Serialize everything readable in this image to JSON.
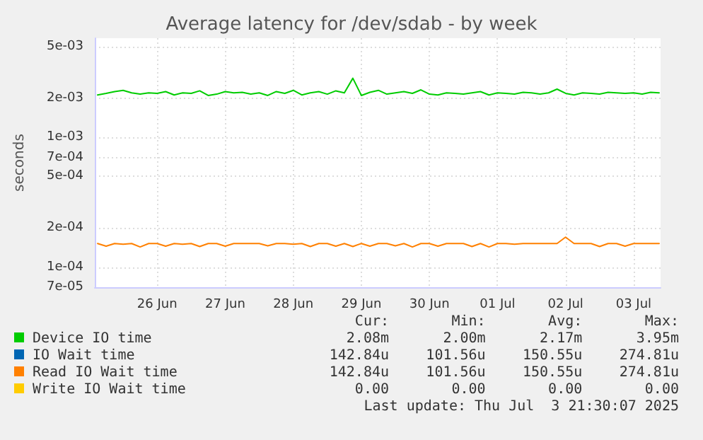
{
  "chart_data": {
    "type": "line",
    "title": "Average latency for /dev/sdab - by week",
    "ylabel": "seconds",
    "x": [
      "2025-06-25T15:00",
      "2025-06-25T18:00",
      "2025-06-25T21:00",
      "2025-06-26T00:00",
      "2025-06-26T03:00",
      "2025-06-26T06:00",
      "2025-06-26T09:00",
      "2025-06-26T12:00",
      "2025-06-26T15:00",
      "2025-06-26T18:00",
      "2025-06-26T21:00",
      "2025-06-27T00:00",
      "2025-06-27T03:00",
      "2025-06-27T06:00",
      "2025-06-27T09:00",
      "2025-06-27T12:00",
      "2025-06-27T15:00",
      "2025-06-27T18:00",
      "2025-06-27T21:00",
      "2025-06-28T00:00",
      "2025-06-28T03:00",
      "2025-06-28T06:00",
      "2025-06-28T09:00",
      "2025-06-28T12:00",
      "2025-06-28T15:00",
      "2025-06-28T18:00",
      "2025-06-28T21:00",
      "2025-06-29T00:00",
      "2025-06-29T03:00",
      "2025-06-29T06:00",
      "2025-06-29T09:00",
      "2025-06-29T12:00",
      "2025-06-29T15:00",
      "2025-06-29T18:00",
      "2025-06-29T21:00",
      "2025-06-30T00:00",
      "2025-06-30T03:00",
      "2025-06-30T06:00",
      "2025-06-30T09:00",
      "2025-06-30T12:00",
      "2025-06-30T15:00",
      "2025-06-30T18:00",
      "2025-06-30T21:00",
      "2025-07-01T00:00",
      "2025-07-01T03:00",
      "2025-07-01T06:00",
      "2025-07-01T09:00",
      "2025-07-01T12:00",
      "2025-07-01T15:00",
      "2025-07-01T18:00",
      "2025-07-01T21:00",
      "2025-07-02T00:00",
      "2025-07-02T03:00",
      "2025-07-02T06:00",
      "2025-07-02T09:00",
      "2025-07-02T12:00",
      "2025-07-02T15:00",
      "2025-07-02T18:00",
      "2025-07-02T21:00",
      "2025-07-03T00:00",
      "2025-07-03T03:00",
      "2025-07-03T06:00",
      "2025-07-03T09:00",
      "2025-07-03T12:00",
      "2025-07-03T15:00",
      "2025-07-03T18:00",
      "2025-07-03T21:00"
    ],
    "series": [
      {
        "name": "Device IO time",
        "color": "#00cc00",
        "values": [
          0.00212,
          0.00218,
          0.00225,
          0.0023,
          0.0022,
          0.00215,
          0.0022,
          0.00218,
          0.00225,
          0.00212,
          0.0022,
          0.00218,
          0.00228,
          0.0021,
          0.00215,
          0.00225,
          0.0022,
          0.00222,
          0.00215,
          0.0022,
          0.0021,
          0.00225,
          0.00218,
          0.0023,
          0.00212,
          0.0022,
          0.00225,
          0.00215,
          0.00228,
          0.0022,
          0.00285,
          0.0021,
          0.00222,
          0.0023,
          0.00215,
          0.0022,
          0.00225,
          0.00218,
          0.00232,
          0.00215,
          0.00212,
          0.0022,
          0.00218,
          0.00215,
          0.0022,
          0.00225,
          0.00212,
          0.0022,
          0.00218,
          0.00215,
          0.00222,
          0.0022,
          0.00215,
          0.0022,
          0.00235,
          0.00218,
          0.00212,
          0.0022,
          0.00218,
          0.00215,
          0.00222,
          0.0022,
          0.00218,
          0.0022,
          0.00215,
          0.00222,
          0.0022
        ]
      },
      {
        "name": "IO Wait time",
        "color": "#0066b3",
        "values": [
          null,
          null,
          null,
          null,
          null,
          null,
          null,
          null,
          null,
          null,
          null,
          null,
          null,
          null,
          null,
          null,
          null,
          null,
          null,
          null,
          null,
          null,
          null,
          null,
          null,
          null,
          null,
          null,
          null,
          null,
          null,
          null,
          null,
          null,
          null,
          null,
          null,
          null,
          null,
          null,
          null,
          null,
          null,
          null,
          null,
          null,
          null,
          null,
          null,
          null,
          null,
          null,
          null,
          null,
          null,
          null,
          null,
          null,
          null,
          null,
          null,
          null,
          null,
          null,
          null,
          null,
          null
        ]
      },
      {
        "name": "Read IO Wait time",
        "color": "#ff8000",
        "values": [
          0.000152,
          0.000145,
          0.000152,
          0.00015,
          0.000152,
          0.000143,
          0.000152,
          0.000152,
          0.000145,
          0.000152,
          0.00015,
          0.000152,
          0.000144,
          0.000152,
          0.000152,
          0.000145,
          0.000152,
          0.000152,
          0.000152,
          0.000152,
          0.000146,
          0.000152,
          0.000152,
          0.00015,
          0.000152,
          0.000144,
          0.000152,
          0.000152,
          0.000145,
          0.000152,
          0.000144,
          0.000152,
          0.000145,
          0.000152,
          0.000152,
          0.000146,
          0.000152,
          0.000143,
          0.000152,
          0.000152,
          0.000145,
          0.000152,
          0.000152,
          0.000152,
          0.000144,
          0.000152,
          0.000143,
          0.000152,
          0.000152,
          0.00015,
          0.000152,
          0.000152,
          0.000152,
          0.000152,
          0.000152,
          0.00017,
          0.000152,
          0.000152,
          0.000152,
          0.000144,
          0.000152,
          0.000152,
          0.000145,
          0.000152,
          0.000152,
          0.000152,
          0.000152
        ]
      },
      {
        "name": "Write IO Wait time",
        "color": "#ffcc00",
        "values": [
          null,
          null,
          null,
          null,
          null,
          null,
          null,
          null,
          null,
          null,
          null,
          null,
          null,
          null,
          null,
          null,
          null,
          null,
          null,
          null,
          null,
          null,
          null,
          null,
          null,
          null,
          null,
          null,
          null,
          null,
          null,
          null,
          null,
          null,
          null,
          null,
          null,
          null,
          null,
          null,
          null,
          null,
          null,
          null,
          null,
          null,
          null,
          null,
          null,
          null,
          null,
          null,
          null,
          null,
          null,
          null,
          null,
          null,
          null,
          null,
          null,
          null,
          null,
          null,
          null,
          null,
          null
        ]
      }
    ],
    "log": "y",
    "ylim": [
      7e-05,
      0.0058
    ],
    "yticks": [
      {
        "value": 7e-05,
        "label": "7e-05"
      },
      {
        "value": 0.0001,
        "label": "1e-04"
      },
      {
        "value": 0.0002,
        "label": "2e-04"
      },
      {
        "value": 0.0005,
        "label": "5e-04"
      },
      {
        "value": 0.0007,
        "label": "7e-04"
      },
      {
        "value": 0.001,
        "label": "1e-03"
      },
      {
        "value": 0.002,
        "label": "2e-03"
      },
      {
        "value": 0.005,
        "label": "5e-03"
      }
    ],
    "xlim": [
      "2025-06-25T14:00",
      "2025-07-03T21:30"
    ],
    "xticks": [
      {
        "value": "2025-06-26T12:00",
        "label": "26 Jun"
      },
      {
        "value": "2025-06-27T12:00",
        "label": "27 Jun"
      },
      {
        "value": "2025-06-28T12:00",
        "label": "28 Jun"
      },
      {
        "value": "2025-06-29T12:00",
        "label": "29 Jun"
      },
      {
        "value": "2025-06-30T12:00",
        "label": "30 Jun"
      },
      {
        "value": "2025-07-01T12:00",
        "label": "01 Jul"
      },
      {
        "value": "2025-07-02T12:00",
        "label": "02 Jul"
      },
      {
        "value": "2025-07-03T12:00",
        "label": "03 Jul"
      }
    ],
    "grid": true,
    "legend": "bottom",
    "marker": "none",
    "line_style": "solid",
    "annotations": [
      "Cur:",
      "Min:",
      "Avg:",
      "Max:",
      "2.08m",
      "2.00m",
      "2.17m",
      "3.95m",
      "142.84u",
      "101.56u",
      "150.55u",
      "274.81u",
      "142.84u",
      "101.56u",
      "150.55u",
      "274.81u",
      "0.00",
      "0.00",
      "0.00",
      "0.00",
      "Last update: Thu Jul  3 21:30:07 2025"
    ]
  }
}
